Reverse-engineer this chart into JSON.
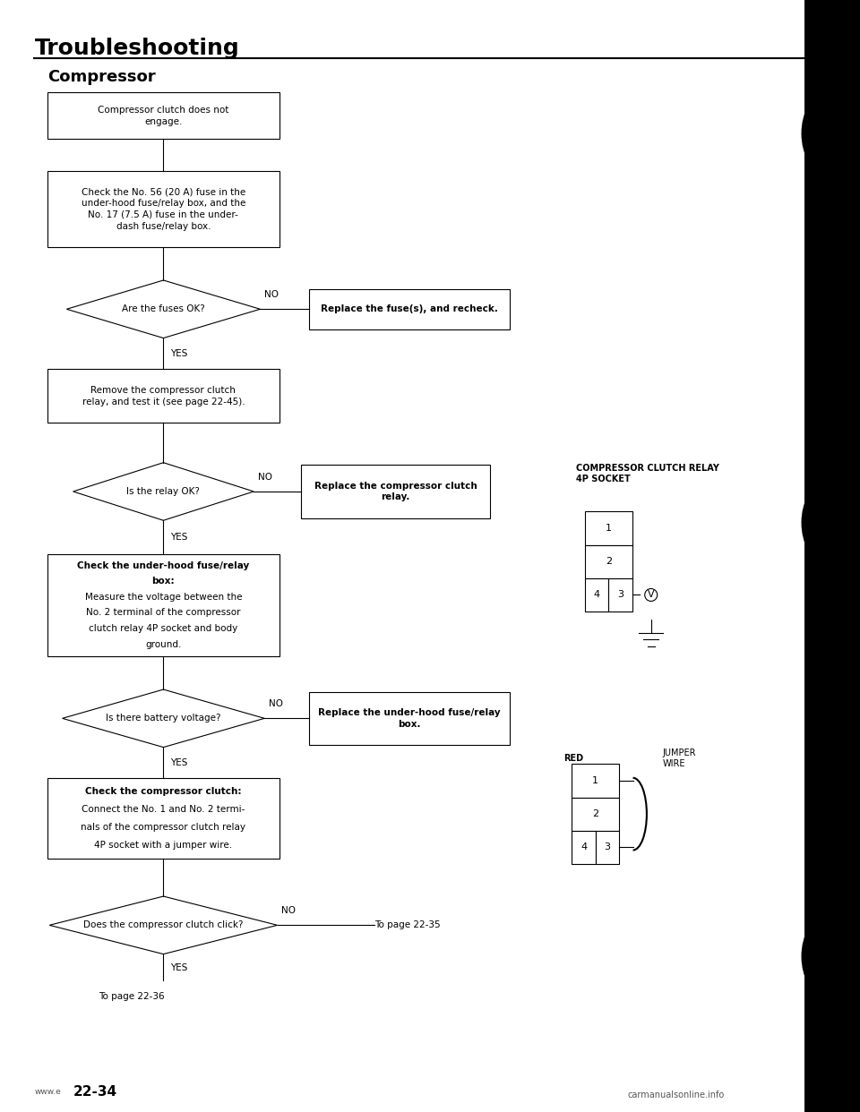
{
  "title": "Troubleshooting",
  "subtitle": "Compressor",
  "bg_color": "#ffffff",
  "page_num": "22-34",
  "b1_text": "Compressor clutch does not\nengage.",
  "b2_text": "Check the No. 56 (20 A) fuse in the\nunder-hood fuse/relay box, and the\nNo. 17 (7.5 A) fuse in the under-\ndash fuse/relay box.",
  "d1_text": "Are the fuses OK?",
  "rb1_text": "Replace the fuse(s), and recheck.",
  "b3_text": "Remove the compressor clutch\nrelay, and test it (see page 22-45).",
  "d2_text": "Is the relay OK?",
  "rb2_line1": "Replace the compressor clutch",
  "rb2_line2": "relay.",
  "b4_bold": "Check the under-hood fuse/relay\nbox:",
  "b4_normal": "Measure the voltage between the\nNo. 2 terminal of the compressor\nclutch relay 4P socket and body\nground.",
  "d3_text": "Is there battery voltage?",
  "rb3_line1": "Replace the under-hood fuse/relay",
  "rb3_line2": "box.",
  "b5_bold": "Check the compressor clutch:",
  "b5_normal": "Connect the No. 1 and No. 2 termi-\nnals of the compressor clutch relay\n4P socket with a jumper wire.",
  "d4_text": "Does the compressor clutch click?",
  "to_page_35": "To page 22-35",
  "to_page_36": "To page 22-36",
  "relay_label": "COMPRESSOR CLUTCH RELAY\n4P SOCKET",
  "red_label": "RED",
  "jumper_label": "JUMPER\nWIRE"
}
